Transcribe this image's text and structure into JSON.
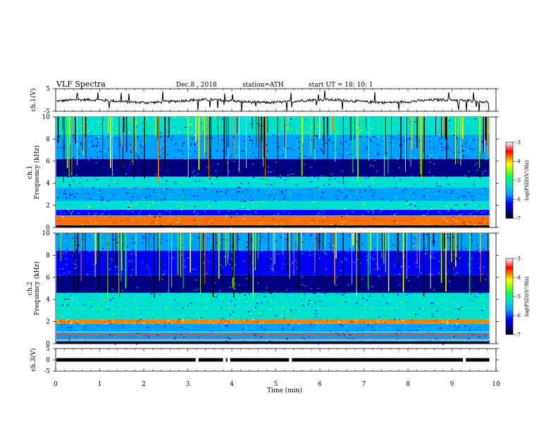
{
  "header": {
    "title": "VLF  Spectra",
    "date": "Dec.8  , 2018",
    "station": "station=ATH",
    "start": "start  UT  =    18: 10: 1"
  },
  "colors": {
    "colormap": [
      "#ffffff",
      "#000000",
      "#000080",
      "#0000ff",
      "#00a0ff",
      "#00e0d0",
      "#00ff60",
      "#a0ff00",
      "#ffff00",
      "#ff8000",
      "#ff0000",
      "#ffffff"
    ]
  },
  "chart_data": [
    {
      "type": "line",
      "ylabel": "ch.1(V)",
      "ylim": [
        -5,
        5
      ],
      "yticks": [
        "5",
        "-5"
      ],
      "xlim": [
        0,
        10
      ],
      "description_level": -0.5
    },
    {
      "type": "heatmap",
      "ylabel": "ch.1\nFrequency  (kHz)",
      "ylim": [
        0,
        10
      ],
      "yticks": [
        "10",
        "8",
        "6",
        "4",
        "2",
        "0"
      ],
      "xlim": [
        0,
        10
      ],
      "colorbar": {
        "label": "log(PSD)(V²/Hz)",
        "range": [
          -7,
          -3
        ],
        "ticks": [
          "-3",
          "-4",
          "-5",
          "-6",
          "-7"
        ]
      },
      "bands": [
        {
          "from_khz": 0.0,
          "to_khz": 1.0,
          "level": -3.6
        },
        {
          "from_khz": 1.0,
          "to_khz": 1.6,
          "level": -5.8
        },
        {
          "from_khz": 1.6,
          "to_khz": 2.4,
          "level": -4.9
        },
        {
          "from_khz": 2.4,
          "to_khz": 3.6,
          "level": -5.4
        },
        {
          "from_khz": 3.6,
          "to_khz": 4.6,
          "level": -5.2
        },
        {
          "from_khz": 4.6,
          "to_khz": 6.2,
          "level": -6.2
        },
        {
          "from_khz": 6.2,
          "to_khz": 8.4,
          "level": -5.6
        },
        {
          "from_khz": 8.4,
          "to_khz": 10.0,
          "level": -4.9
        }
      ]
    },
    {
      "type": "heatmap",
      "ylabel": "ch.2\nFrequency  (kHz)",
      "ylim": [
        0,
        10
      ],
      "yticks": [
        "10",
        "8",
        "6",
        "4",
        "2",
        "0"
      ],
      "xlim": [
        0,
        10
      ],
      "colorbar": {
        "label": "log(PSD)(V²/Hz)",
        "range": [
          -7,
          -3
        ],
        "ticks": [
          "-3",
          "-4",
          "-5",
          "-6",
          "-7"
        ]
      },
      "bands": [
        {
          "from_khz": 0.0,
          "to_khz": 1.8,
          "level": -5.4
        },
        {
          "from_khz": 1.8,
          "to_khz": 2.2,
          "level": -3.6
        },
        {
          "from_khz": 2.2,
          "to_khz": 3.2,
          "level": -5.0
        },
        {
          "from_khz": 3.2,
          "to_khz": 4.6,
          "level": -5.1
        },
        {
          "from_khz": 4.6,
          "to_khz": 6.2,
          "level": -6.4
        },
        {
          "from_khz": 6.2,
          "to_khz": 8.4,
          "level": -6.0
        },
        {
          "from_khz": 8.4,
          "to_khz": 10.0,
          "level": -5.4
        }
      ]
    },
    {
      "type": "line",
      "ylabel": "ch.3(V)",
      "ylim": [
        -5,
        5
      ],
      "yticks": [
        "5",
        "0",
        "-5"
      ],
      "xlim": [
        0,
        10
      ],
      "description_level": 0,
      "gaps_min": [
        3.18,
        3.8,
        3.9,
        5.3,
        9.25
      ]
    }
  ],
  "x_axis": {
    "label": "Time  (min)",
    "ticks": [
      "0",
      "1",
      "2",
      "3",
      "4",
      "5",
      "6",
      "7",
      "8",
      "9",
      "10"
    ],
    "xlim": [
      0,
      10
    ]
  }
}
